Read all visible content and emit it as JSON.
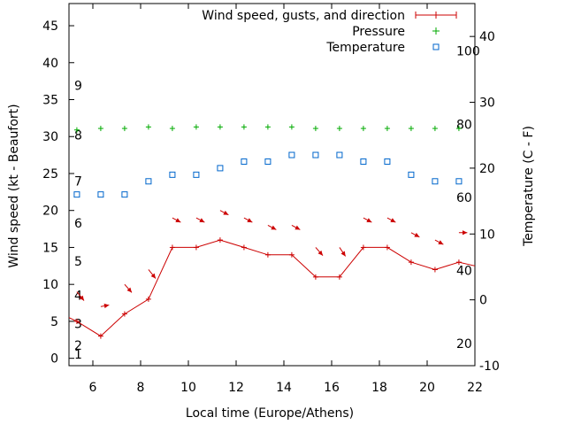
{
  "chart_data": {
    "type": "line",
    "title": "",
    "xlabel": "Local time (Europe/Athens)",
    "ylabel_left": "Wind speed (kt - Beaufort)",
    "ylabel_right": "Temperature (C - F)",
    "xlim": [
      5,
      22
    ],
    "ylim_left": [
      -1,
      48
    ],
    "ylim_right": [
      -10,
      45
    ],
    "x_ticks": [
      "6",
      "8",
      "10",
      "12",
      "14",
      "16",
      "18",
      "20",
      "22"
    ],
    "y_ticks_left": [
      "0",
      "5",
      "10",
      "15",
      "20",
      "25",
      "30",
      "35",
      "40",
      "45"
    ],
    "y_ticks_right": [
      "-10",
      "0",
      "10",
      "20",
      "30",
      "40"
    ],
    "beaufort_labels": [
      "1",
      "2",
      "3",
      "4",
      "5",
      "6",
      "7",
      "8",
      "9"
    ],
    "fahrenheit_labels": [
      "20",
      "40",
      "60",
      "80",
      "100"
    ],
    "legend_position": "top-right",
    "grid": false,
    "colors": {
      "wind": "#cc0000",
      "pressure": "#00aa00",
      "temperature": "#0066cc"
    },
    "series": [
      {
        "name": "Wind speed, gusts, and direction",
        "marker": "plus-line",
        "x": [
          5,
          5.33,
          6.33,
          7.33,
          8.33,
          9.33,
          10.33,
          11.33,
          12.33,
          13.33,
          14.33,
          15.33,
          16.33,
          17.33,
          18.33,
          19.33,
          20.33,
          21.33,
          22
        ],
        "values": [
          5.5,
          5,
          3,
          6,
          8,
          15,
          15,
          16,
          15,
          14,
          14,
          11,
          11,
          15,
          15,
          13,
          12,
          13,
          12.5
        ]
      },
      {
        "name": "Pressure",
        "marker": "plus",
        "axis": "left",
        "x": [
          5.33,
          6.33,
          7.33,
          8.33,
          9.33,
          10.33,
          11.33,
          12.33,
          13.33,
          14.33,
          15.33,
          16.33,
          17.33,
          18.33,
          19.33,
          20.33,
          21.33
        ],
        "values": [
          30.9,
          31.1,
          31.1,
          31.3,
          31.1,
          31.3,
          31.3,
          31.3,
          31.3,
          31.3,
          31.1,
          31.1,
          31.1,
          31.1,
          31.1,
          31.1,
          31.1
        ]
      },
      {
        "name": "Temperature",
        "marker": "square",
        "axis": "right",
        "x": [
          5.33,
          6.33,
          7.33,
          8.33,
          9.33,
          10.33,
          11.33,
          12.33,
          13.33,
          14.33,
          15.33,
          16.33,
          17.33,
          18.33,
          19.33,
          20.33,
          21.33
        ],
        "values": [
          16,
          16,
          16,
          18,
          19,
          19,
          20,
          21,
          21,
          22,
          22,
          22,
          21,
          21,
          19,
          18,
          18
        ]
      }
    ],
    "wind_direction": {
      "x": [
        5.33,
        6.33,
        7.33,
        8.33,
        9.33,
        10.33,
        11.33,
        12.33,
        13.33,
        14.33,
        15.33,
        16.33,
        17.33,
        18.33,
        19.33,
        20.33,
        21.33
      ],
      "y": [
        9,
        7,
        10,
        12,
        19,
        19,
        20,
        19,
        18,
        18,
        15,
        15,
        19,
        19,
        17,
        16,
        17
      ],
      "dx": [
        0.3,
        0.35,
        0.3,
        0.3,
        0.35,
        0.35,
        0.35,
        0.35,
        0.35,
        0.35,
        0.3,
        0.25,
        0.35,
        0.35,
        0.35,
        0.35,
        0.35
      ],
      "dy": [
        -1.2,
        0.2,
        -1.1,
        -1.2,
        -0.6,
        -0.6,
        -0.6,
        -0.6,
        -0.6,
        -0.6,
        -1.1,
        -1.2,
        -0.6,
        -0.6,
        -0.6,
        -0.6,
        0
      ]
    }
  }
}
